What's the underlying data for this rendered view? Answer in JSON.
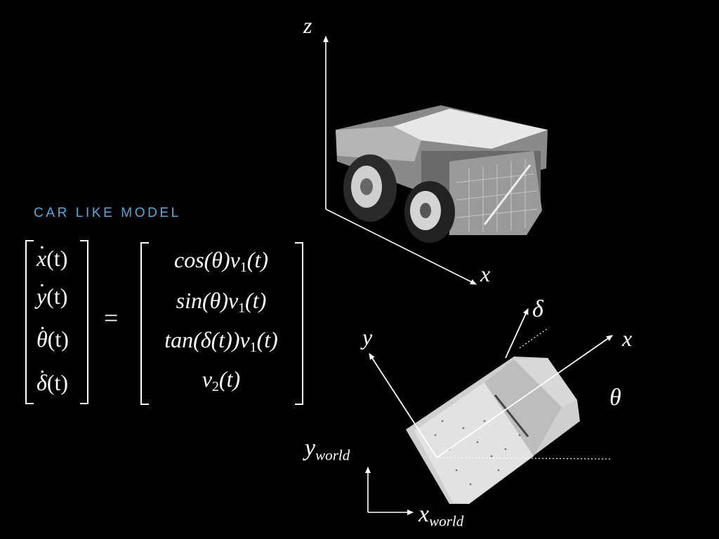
{
  "title": "CAR LIKE MODEL",
  "state_vector": [
    {
      "var": "x",
      "arg": "(t)"
    },
    {
      "var": "y",
      "arg": "(t)"
    },
    {
      "var": "θ",
      "arg": "(t)"
    },
    {
      "var": "δ",
      "arg": "(t)"
    }
  ],
  "equals": "=",
  "rhs": [
    {
      "pre": "cos(θ)v",
      "sub": "1",
      "post": "(t)"
    },
    {
      "pre": "sin(θ)v",
      "sub": "1",
      "post": "(t)"
    },
    {
      "pre": "tan(δ(t))v",
      "sub": "1",
      "post": "(t)"
    },
    {
      "pre": "v",
      "sub": "2",
      "post": "(t)"
    }
  ],
  "axes_3d": {
    "z": "z",
    "x": "x"
  },
  "axes_2d": {
    "x": "x",
    "y": "y",
    "delta": "δ",
    "theta": "θ"
  },
  "world_axes": {
    "y_base": "y",
    "y_sub": "world",
    "x_base": "x",
    "x_sub": "world"
  },
  "colors": {
    "accent": "#5aa8d8",
    "background": "#000000",
    "foreground": "#ffffff"
  }
}
